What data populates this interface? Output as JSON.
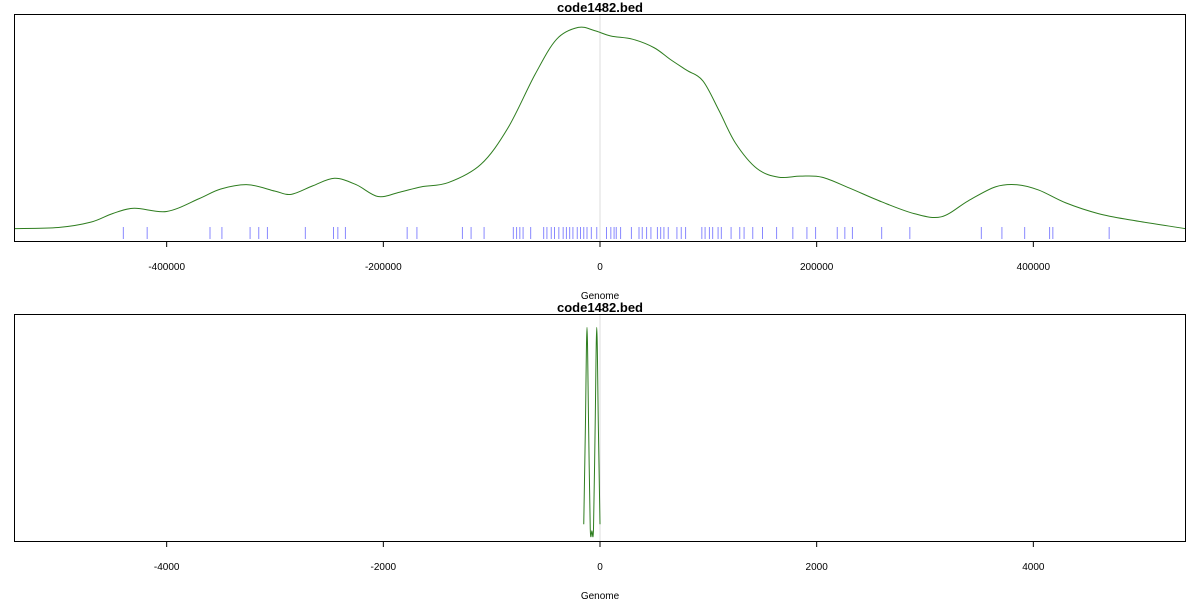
{
  "chart_data": [
    {
      "type": "line",
      "title": "code1482.bed",
      "xlabel": "Genome",
      "ylabel": "",
      "xlim": [
        -540000,
        540000
      ],
      "ylim": [
        0,
        1.0
      ],
      "xticks": [
        -400000,
        -200000,
        0,
        200000,
        400000
      ],
      "xtick_labels": [
        "-400000",
        "-200000",
        "0",
        "200000",
        "400000"
      ],
      "vline_x": 0,
      "series": [
        {
          "color": "#2e7d1f",
          "x": [
            -540000,
            -500000,
            -470000,
            -450000,
            -430000,
            -400000,
            -370000,
            -350000,
            -325000,
            -300000,
            -285000,
            -265000,
            -245000,
            -225000,
            -205000,
            -185000,
            -165000,
            -140000,
            -110000,
            -85000,
            -60000,
            -40000,
            -20000,
            -5000,
            10000,
            30000,
            50000,
            65000,
            80000,
            95000,
            110000,
            125000,
            145000,
            165000,
            185000,
            205000,
            230000,
            260000,
            290000,
            315000,
            340000,
            365000,
            385000,
            405000,
            430000,
            460000,
            490000,
            540000
          ],
          "y": [
            0.03,
            0.035,
            0.06,
            0.1,
            0.125,
            0.11,
            0.17,
            0.215,
            0.235,
            0.205,
            0.19,
            0.23,
            0.265,
            0.235,
            0.18,
            0.2,
            0.225,
            0.245,
            0.33,
            0.5,
            0.75,
            0.915,
            0.97,
            0.955,
            0.93,
            0.915,
            0.875,
            0.82,
            0.77,
            0.72,
            0.58,
            0.43,
            0.31,
            0.27,
            0.275,
            0.27,
            0.22,
            0.155,
            0.1,
            0.085,
            0.16,
            0.225,
            0.235,
            0.21,
            0.15,
            0.1,
            0.07,
            0.03
          ]
        }
      ],
      "rug_x": [
        -440000,
        -418000,
        -360000,
        -349000,
        -323000,
        -315000,
        -307000,
        -272000,
        -246000,
        -242000,
        -235000,
        -178000,
        -169000,
        -127000,
        -119000,
        -107000,
        -80000,
        -77000,
        -74000,
        -71000,
        -64000,
        -52000,
        -49000,
        -45000,
        -42000,
        -38000,
        -34000,
        -31000,
        -28000,
        -25000,
        -21000,
        -18000,
        -15000,
        -12000,
        -8000,
        -3000,
        6000,
        10000,
        13000,
        15000,
        19000,
        29000,
        36000,
        39000,
        43000,
        47000,
        53000,
        56000,
        59000,
        63000,
        71000,
        75000,
        79000,
        94000,
        97000,
        101000,
        104000,
        109000,
        112000,
        121000,
        129000,
        133000,
        141000,
        150000,
        163000,
        178000,
        191000,
        199000,
        219000,
        226000,
        233000,
        260000,
        286000,
        352000,
        371000,
        392000,
        415000,
        418000,
        470000
      ],
      "rug_color": "#8888ff",
      "line_color": "#2e7d1f",
      "grid": false
    },
    {
      "type": "line",
      "title": "code1482.bed",
      "xlabel": "Genome",
      "ylabel": "",
      "xlim": [
        -5400,
        5400
      ],
      "ylim": [
        0,
        1.0
      ],
      "xticks": [
        -4000,
        -2000,
        0,
        2000,
        4000
      ],
      "xtick_labels": [
        "-4000",
        "-2000",
        "0",
        "2000",
        "4000"
      ],
      "vline_x": 0,
      "series": [
        {
          "color": "#2e7d1f",
          "x": [
            -150,
            -135,
            -120,
            -105,
            -90,
            -75,
            -60,
            -45,
            -30,
            -15,
            0
          ],
          "y": [
            0.05,
            0.5,
            0.97,
            0.5,
            0.03,
            0.02,
            0.03,
            0.5,
            0.97,
            0.5,
            0.05
          ]
        }
      ],
      "rug_x": [],
      "rug_color": "#8888ff",
      "line_color": "#2e7d1f",
      "grid": false
    }
  ]
}
